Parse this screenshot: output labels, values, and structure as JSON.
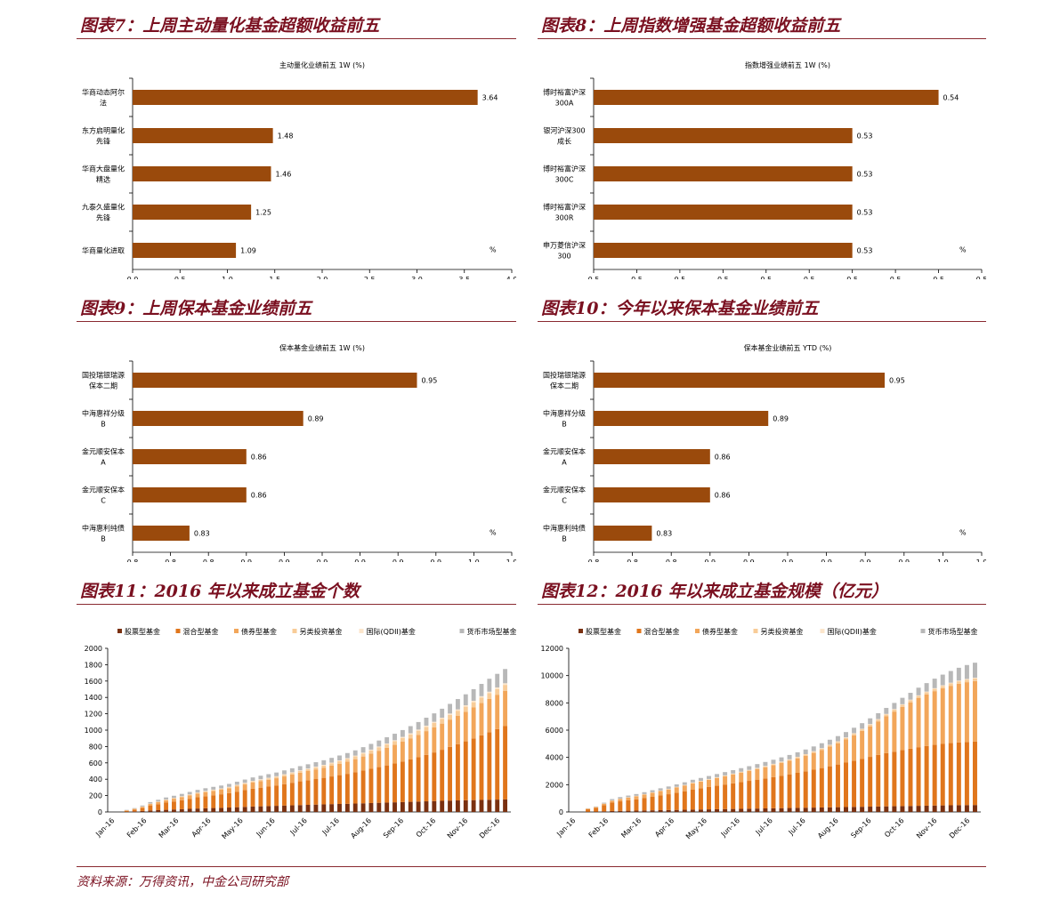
{
  "source": "资料来源：万得资讯，中金公司研究部",
  "panels": [
    {
      "title": "图表7：上周主动量化基金超额收益前五",
      "chart_data": {
        "type": "bar",
        "orientation": "horizontal",
        "title": "主动量化业绩前五 1W (%)",
        "unit_label": "%",
        "categories": [
          "华商动态阿尔\n法",
          "东方启明量化\n先锋",
          "华商大盘量化\n精选",
          "九泰久盛量化\n先锋",
          "华商量化进取"
        ],
        "values": [
          3.64,
          1.48,
          1.46,
          1.25,
          1.09
        ],
        "xlim": [
          0,
          4
        ],
        "xticks": [
          "0.0",
          "0.5",
          "1.0",
          "1.5",
          "2.0",
          "2.5",
          "3.0",
          "3.5",
          "4.0"
        ],
        "bar_color": "#9a4a0c"
      }
    },
    {
      "title": "图表8：上周指数增强基金超额收益前五",
      "chart_data": {
        "type": "bar",
        "orientation": "horizontal",
        "title": "指数增强业绩前五 1W (%)",
        "unit_label": "%",
        "categories": [
          "博时裕富沪深\n300A",
          "银河沪深300\n成长",
          "博时裕富沪深\n300C",
          "博时裕富沪深\n300R",
          "申万菱信沪深\n300"
        ],
        "values": [
          0.54,
          0.53,
          0.53,
          0.53,
          0.53
        ],
        "xlim": [
          0.5,
          0.545
        ],
        "xticks": [
          "0.5",
          "0.5",
          "0.5",
          "0.5",
          "0.5",
          "0.5",
          "0.5",
          "0.5",
          "0.5",
          "0.5"
        ],
        "bar_color": "#9a4a0c"
      }
    },
    {
      "title": "图表9：上周保本基金业绩前五",
      "chart_data": {
        "type": "bar",
        "orientation": "horizontal",
        "title": "保本基金业绩前五 1W (%)",
        "unit_label": "%",
        "categories": [
          "国投瑞银瑞源\n保本二期",
          "中海惠祥分级\nB",
          "金元顺安保本\nA",
          "金元顺安保本\nC",
          "中海惠利纯债\nB"
        ],
        "values": [
          0.95,
          0.89,
          0.86,
          0.86,
          0.83
        ],
        "xlim": [
          0.8,
          1.0
        ],
        "xticks": [
          "0.8",
          "0.8",
          "0.8",
          "0.9",
          "0.9",
          "0.9",
          "0.9",
          "0.9",
          "0.9",
          "1.0",
          "1.0"
        ],
        "bar_color": "#9a4a0c"
      }
    },
    {
      "title": "图表10：今年以来保本基金业绩前五",
      "chart_data": {
        "type": "bar",
        "orientation": "horizontal",
        "title": "保本基金业绩前五 YTD (%)",
        "unit_label": "%",
        "categories": [
          "国投瑞银瑞源\n保本二期",
          "中海惠祥分级\nB",
          "金元顺安保本\nA",
          "金元顺安保本\nC",
          "中海惠利纯债\nB"
        ],
        "values": [
          0.95,
          0.89,
          0.86,
          0.86,
          0.83
        ],
        "xlim": [
          0.8,
          1.0
        ],
        "xticks": [
          "0.8",
          "0.8",
          "0.8",
          "0.9",
          "0.9",
          "0.9",
          "0.9",
          "0.9",
          "0.9",
          "1.0",
          "1.0"
        ],
        "bar_color": "#9a4a0c"
      }
    },
    {
      "title": "图表11：2016 年以来成立基金个数",
      "chart_data": {
        "type": "bar",
        "stacked": true,
        "ylim": [
          0,
          2000
        ],
        "yticks": [
          0,
          200,
          400,
          600,
          800,
          1000,
          1200,
          1400,
          1600,
          1800,
          2000
        ],
        "xtick_labels": [
          "Jan-16",
          "Feb-16",
          "Mar-16",
          "Apr-16",
          "May-16",
          "Jun-16",
          "Jul-16",
          "Jul-16",
          "Aug-16",
          "Sep-16",
          "Oct-16",
          "Nov-16",
          "Dec-16"
        ],
        "series": [
          {
            "name": "股票型基金",
            "color": "#7a3010"
          },
          {
            "name": "混合型基金",
            "color": "#e0761c"
          },
          {
            "name": "债券型基金",
            "color": "#f2a65a"
          },
          {
            "name": "另类投资基金",
            "color": "#f8cc98"
          },
          {
            "name": "国际(QDII)基金",
            "color": "#fce6cc"
          },
          {
            "name": "货币市场型基金",
            "color": "#b8b8b8"
          }
        ],
        "x_count": 50,
        "stack_totals": [
          [
            0,
            0,
            0,
            0,
            0,
            0
          ],
          [
            3,
            12,
            5,
            1,
            1,
            3
          ],
          [
            7,
            22,
            9,
            2,
            1,
            6
          ],
          [
            12,
            36,
            14,
            3,
            2,
            12
          ],
          [
            18,
            58,
            21,
            4,
            2,
            18
          ],
          [
            22,
            73,
            25,
            5,
            3,
            21
          ],
          [
            26,
            88,
            30,
            6,
            3,
            24
          ],
          [
            30,
            98,
            34,
            7,
            3,
            26
          ],
          [
            34,
            109,
            38,
            8,
            4,
            28
          ],
          [
            38,
            123,
            42,
            8,
            4,
            30
          ],
          [
            42,
            137,
            46,
            9,
            4,
            32
          ],
          [
            45,
            147,
            50,
            10,
            5,
            33
          ],
          [
            48,
            156,
            53,
            11,
            5,
            34
          ],
          [
            51,
            165,
            56,
            11,
            5,
            35
          ],
          [
            54,
            176,
            60,
            12,
            5,
            36
          ],
          [
            58,
            190,
            65,
            13,
            6,
            38
          ],
          [
            62,
            204,
            70,
            14,
            6,
            40
          ],
          [
            66,
            218,
            75,
            15,
            6,
            42
          ],
          [
            69,
            228,
            80,
            16,
            7,
            43
          ],
          [
            72,
            238,
            84,
            17,
            7,
            44
          ],
          [
            75,
            249,
            88,
            18,
            7,
            45
          ],
          [
            78,
            262,
            94,
            19,
            8,
            47
          ],
          [
            81,
            276,
            100,
            20,
            8,
            49
          ],
          [
            84,
            290,
            106,
            21,
            8,
            51
          ],
          [
            87,
            301,
            112,
            23,
            8,
            52
          ],
          [
            90,
            312,
            118,
            25,
            9,
            54
          ],
          [
            93,
            324,
            124,
            26,
            9,
            56
          ],
          [
            96,
            338,
            132,
            28,
            9,
            58
          ],
          [
            98,
            352,
            140,
            30,
            10,
            60
          ],
          [
            100,
            366,
            150,
            32,
            10,
            62
          ],
          [
            103,
            382,
            160,
            34,
            10,
            64
          ],
          [
            106,
            400,
            172,
            36,
            11,
            67
          ],
          [
            109,
            418,
            186,
            38,
            11,
            70
          ],
          [
            112,
            436,
            200,
            40,
            12,
            73
          ],
          [
            115,
            454,
            214,
            42,
            12,
            76
          ],
          [
            118,
            474,
            228,
            44,
            13,
            79
          ],
          [
            121,
            496,
            242,
            46,
            13,
            83
          ],
          [
            124,
            518,
            258,
            48,
            14,
            87
          ],
          [
            127,
            542,
            274,
            50,
            14,
            92
          ],
          [
            130,
            568,
            290,
            52,
            15,
            97
          ],
          [
            133,
            594,
            306,
            54,
            15,
            103
          ],
          [
            136,
            624,
            320,
            56,
            16,
            110
          ],
          [
            139,
            656,
            334,
            58,
            16,
            118
          ],
          [
            141,
            688,
            348,
            60,
            17,
            126
          ],
          [
            143,
            720,
            362,
            62,
            17,
            134
          ],
          [
            145,
            754,
            378,
            64,
            18,
            142
          ],
          [
            147,
            790,
            394,
            66,
            18,
            150
          ],
          [
            149,
            826,
            408,
            68,
            19,
            158
          ],
          [
            151,
            862,
            420,
            70,
            19,
            166
          ],
          [
            153,
            896,
            432,
            72,
            20,
            174
          ]
        ]
      }
    },
    {
      "title": "图表12：2016 年以来成立基金规模（亿元）",
      "chart_data": {
        "type": "bar",
        "stacked": true,
        "ylim": [
          0,
          12000
        ],
        "yticks": [
          0,
          2000,
          4000,
          6000,
          8000,
          10000,
          12000
        ],
        "xtick_labels": [
          "Jan-16",
          "Feb-16",
          "Mar-16",
          "Apr-16",
          "May-16",
          "Jun-16",
          "Jul-16",
          "Jul-16",
          "Aug-16",
          "Sep-16",
          "Oct-16",
          "Nov-16",
          "Dec-16"
        ],
        "series": [
          {
            "name": "股票型基金",
            "color": "#7a3010"
          },
          {
            "name": "混合型基金",
            "color": "#e0761c"
          },
          {
            "name": "债券型基金",
            "color": "#f2a65a"
          },
          {
            "name": "另类投资基金",
            "color": "#f8cc98"
          },
          {
            "name": "国际(QDII)基金",
            "color": "#fce6cc"
          },
          {
            "name": "货币市场型基金",
            "color": "#b8b8b8"
          }
        ],
        "x_count": 50,
        "stack_totals": [
          [
            0,
            0,
            0,
            0,
            0,
            0
          ],
          [
            20,
            180,
            40,
            5,
            5,
            20
          ],
          [
            30,
            270,
            60,
            7,
            5,
            30
          ],
          [
            50,
            450,
            100,
            10,
            10,
            60
          ],
          [
            70,
            620,
            140,
            15,
            10,
            90
          ],
          [
            80,
            700,
            170,
            18,
            12,
            110
          ],
          [
            90,
            760,
            200,
            20,
            12,
            120
          ],
          [
            100,
            820,
            230,
            22,
            13,
            130
          ],
          [
            110,
            900,
            260,
            25,
            15,
            140
          ],
          [
            120,
            990,
            290,
            28,
            15,
            150
          ],
          [
            130,
            1080,
            320,
            30,
            16,
            160
          ],
          [
            140,
            1160,
            350,
            32,
            17,
            170
          ],
          [
            150,
            1260,
            380,
            35,
            18,
            180
          ],
          [
            160,
            1360,
            410,
            37,
            19,
            190
          ],
          [
            170,
            1480,
            450,
            40,
            20,
            200
          ],
          [
            180,
            1560,
            480,
            42,
            21,
            210
          ],
          [
            190,
            1640,
            520,
            45,
            22,
            220
          ],
          [
            200,
            1720,
            560,
            48,
            23,
            230
          ],
          [
            210,
            1800,
            600,
            50,
            24,
            240
          ],
          [
            220,
            1880,
            640,
            53,
            25,
            250
          ],
          [
            230,
            1960,
            680,
            56,
            26,
            260
          ],
          [
            240,
            2040,
            720,
            60,
            27,
            270
          ],
          [
            250,
            2120,
            770,
            63,
            28,
            280
          ],
          [
            260,
            2200,
            820,
            66,
            29,
            290
          ],
          [
            270,
            2290,
            870,
            70,
            30,
            300
          ],
          [
            280,
            2380,
            930,
            74,
            31,
            310
          ],
          [
            290,
            2470,
            990,
            78,
            32,
            320
          ],
          [
            300,
            2570,
            1060,
            82,
            33,
            330
          ],
          [
            310,
            2670,
            1140,
            86,
            34,
            340
          ],
          [
            320,
            2780,
            1230,
            90,
            35,
            350
          ],
          [
            330,
            2890,
            1330,
            95,
            36,
            360
          ],
          [
            340,
            3010,
            1440,
            100,
            37,
            370
          ],
          [
            350,
            3130,
            1560,
            105,
            38,
            380
          ],
          [
            360,
            3260,
            1700,
            110,
            39,
            390
          ],
          [
            370,
            3390,
            1860,
            115,
            40,
            400
          ],
          [
            380,
            3520,
            2040,
            120,
            41,
            410
          ],
          [
            390,
            3650,
            2240,
            125,
            42,
            420
          ],
          [
            400,
            3780,
            2460,
            130,
            43,
            430
          ],
          [
            410,
            3900,
            2700,
            135,
            44,
            440
          ],
          [
            420,
            4000,
            2940,
            140,
            45,
            450
          ],
          [
            430,
            4100,
            3180,
            145,
            46,
            470
          ],
          [
            440,
            4200,
            3400,
            150,
            47,
            500
          ],
          [
            450,
            4300,
            3600,
            155,
            48,
            560
          ],
          [
            460,
            4380,
            3780,
            160,
            49,
            620
          ],
          [
            470,
            4450,
            3940,
            165,
            50,
            700
          ],
          [
            480,
            4510,
            4080,
            170,
            51,
            780
          ],
          [
            490,
            4560,
            4200,
            175,
            52,
            860
          ],
          [
            500,
            4600,
            4300,
            180,
            53,
            940
          ],
          [
            505,
            4630,
            4380,
            185,
            54,
            1020
          ],
          [
            510,
            4650,
            4440,
            190,
            55,
            1100
          ]
        ]
      }
    }
  ]
}
